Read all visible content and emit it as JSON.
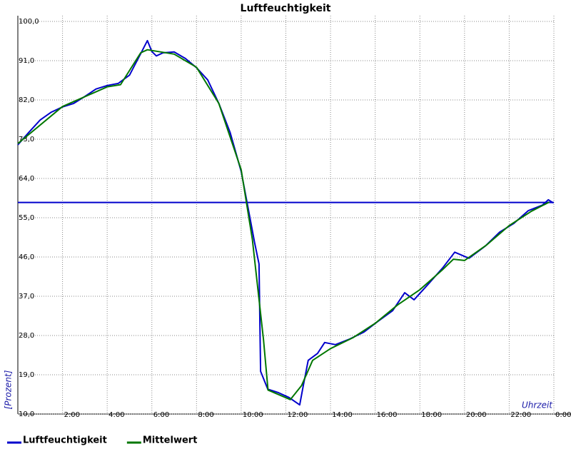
{
  "chart_data": {
    "type": "line",
    "title": "Luftfeuchtigkeit",
    "y_label": "[Prozent]",
    "x_label": "Uhrzeit",
    "xlim": [
      0,
      24
    ],
    "ylim": [
      10,
      100
    ],
    "xticks": [
      {
        "value": 2,
        "label": "2:00"
      },
      {
        "value": 4,
        "label": "4:00"
      },
      {
        "value": 6,
        "label": "6:00"
      },
      {
        "value": 8,
        "label": "8:00"
      },
      {
        "value": 10,
        "label": "10:00"
      },
      {
        "value": 12,
        "label": "12:00"
      },
      {
        "value": 14,
        "label": "14:00"
      },
      {
        "value": 16,
        "label": "16:00"
      },
      {
        "value": 18,
        "label": "18:00"
      },
      {
        "value": 20,
        "label": "20:00"
      },
      {
        "value": 22,
        "label": "22:00"
      },
      {
        "value": 24,
        "label": "0:00"
      }
    ],
    "yticks": [
      {
        "value": 10,
        "label": "10,0"
      },
      {
        "value": 19,
        "label": "19,0"
      },
      {
        "value": 28,
        "label": "28,0"
      },
      {
        "value": 37,
        "label": "37,0"
      },
      {
        "value": 46,
        "label": "46,0"
      },
      {
        "value": 55,
        "label": "55,0"
      },
      {
        "value": 64,
        "label": "64,0"
      },
      {
        "value": 73,
        "label": "73,0"
      },
      {
        "value": 82,
        "label": "82,0"
      },
      {
        "value": 91,
        "label": "91,0"
      },
      {
        "value": 100,
        "label": "100,0"
      }
    ],
    "grid": true,
    "reference_line": {
      "value": 58.5,
      "color": "#0000cc"
    },
    "series": [
      {
        "name": "Luftfeuchtigkeit",
        "color": "#0000cc",
        "x": [
          0,
          0.5,
          1,
          1.5,
          2,
          2.5,
          3,
          3.5,
          4,
          4.5,
          5,
          5.5,
          5.8,
          6,
          6.2,
          6.5,
          7,
          7.5,
          8,
          8.5,
          9,
          9.5,
          10,
          10.3,
          10.6,
          10.8,
          10.87,
          11.19,
          11.67,
          12.14,
          12.62,
          12.78,
          13,
          13.42,
          13.74,
          14.22,
          14.86,
          15.5,
          16.14,
          16.78,
          17.32,
          17.74,
          18.38,
          19.02,
          19.56,
          20.2,
          20.93,
          21.57,
          22.21,
          22.85,
          23.49,
          23.75,
          23.97
        ],
        "values": [
          71.7,
          74.6,
          77.4,
          79.2,
          80.4,
          81.2,
          82.8,
          84.5,
          85.3,
          85.8,
          87.7,
          92.6,
          95.6,
          93.1,
          92.1,
          92.8,
          93.0,
          91.5,
          89.4,
          86.6,
          81.2,
          74.6,
          65.6,
          57.5,
          49.3,
          44.4,
          19.8,
          15.7,
          14.9,
          13.8,
          12.1,
          16.5,
          22.3,
          23.9,
          26.4,
          25.9,
          27.2,
          28.8,
          31.3,
          33.7,
          37.8,
          36.2,
          39.8,
          43.5,
          47.1,
          45.7,
          48.5,
          51.7,
          53.7,
          56.6,
          57.9,
          59.1,
          58.4
        ]
      },
      {
        "name": "Mittelwert",
        "color": "#007700",
        "x": [
          0,
          2,
          4,
          4.6,
          5.5,
          5.8,
          7,
          8,
          9,
          10,
          10.5,
          11,
          11.2,
          12.2,
          12.7,
          13.2,
          14,
          15,
          16,
          17,
          18,
          19,
          19.5,
          20,
          21,
          22,
          23,
          23.8
        ],
        "values": [
          72,
          80.5,
          85,
          85.5,
          92.8,
          93.5,
          92.5,
          89.5,
          81.2,
          66,
          50,
          27,
          15.5,
          13.3,
          16.5,
          22.3,
          25,
          27.5,
          30.8,
          35,
          38.5,
          43,
          45.5,
          45.2,
          48.8,
          53.2,
          56.5,
          58.6
        ]
      }
    ]
  }
}
